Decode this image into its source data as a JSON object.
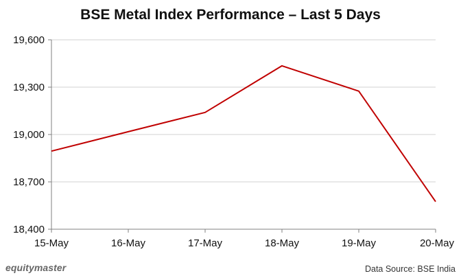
{
  "chart_data": {
    "type": "line",
    "title": "BSE Metal Index Performance – Last 5 Days",
    "xlabel": "",
    "ylabel": "",
    "categories": [
      "15-May",
      "16-May",
      "17-May",
      "18-May",
      "19-May",
      "20-May"
    ],
    "series": [
      {
        "values": [
          18895,
          19018,
          19140,
          19435,
          19275,
          18575
        ],
        "color": "#c00000"
      }
    ],
    "ylim": [
      18400,
      19600
    ],
    "yticks": [
      18400,
      18700,
      19000,
      19300,
      19600
    ],
    "ytick_labels": [
      "18,400",
      "18,700",
      "19,000",
      "19,300",
      "19,600"
    ],
    "grid": "horizontal",
    "legend": "none"
  },
  "footer": {
    "brand": "equitymaster",
    "source": "Data Source: BSE India"
  }
}
